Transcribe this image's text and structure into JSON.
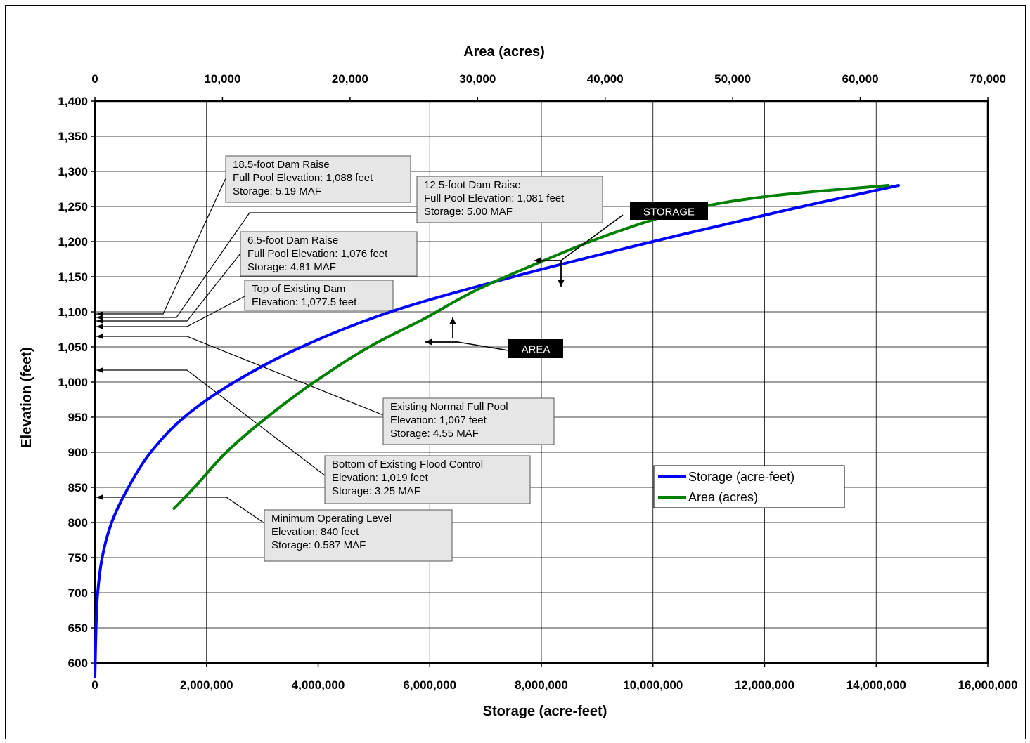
{
  "chart_data": {
    "type": "line",
    "top_axis": {
      "label": "Area (acres)",
      "range": [
        0,
        70000
      ],
      "ticks": [
        "0",
        "10,000",
        "20,000",
        "30,000",
        "40,000",
        "50,000",
        "60,000",
        "70,000"
      ]
    },
    "bottom_axis": {
      "label": "Storage (acre-feet)",
      "range": [
        0,
        16000000
      ],
      "ticks": [
        "0",
        "2,000,000",
        "4,000,000",
        "6,000,000",
        "8,000,000",
        "10,000,000",
        "12,000,000",
        "14,000,000",
        "16,000,000"
      ]
    },
    "y_axis": {
      "label": "Elevation (feet)",
      "range": [
        600,
        1400
      ],
      "ticks": [
        "600",
        "650",
        "700",
        "750",
        "800",
        "850",
        "900",
        "950",
        "1,000",
        "1,050",
        "1,100",
        "1,150",
        "1,200",
        "1,250",
        "1,300",
        "1,350",
        "1,400"
      ]
    },
    "grid": true,
    "legend_position": "right",
    "series": [
      {
        "name": "Storage (acre-feet)",
        "axis": "bottom",
        "color": "#0000ff",
        "points": [
          [
            0,
            580
          ],
          [
            20000,
            650
          ],
          [
            50000,
            700
          ],
          [
            130000,
            750
          ],
          [
            300000,
            800
          ],
          [
            600000,
            850
          ],
          [
            1000000,
            900
          ],
          [
            1600000,
            950
          ],
          [
            2500000,
            1000
          ],
          [
            3700000,
            1050
          ],
          [
            5300000,
            1100
          ],
          [
            7500000,
            1150
          ],
          [
            10000000,
            1200
          ],
          [
            12400000,
            1245
          ],
          [
            14400000,
            1280
          ]
        ]
      },
      {
        "name": "Area (acres)",
        "axis": "top",
        "color": "#008000",
        "points": [
          [
            6200,
            820
          ],
          [
            7800,
            850
          ],
          [
            10300,
            900
          ],
          [
            13500,
            950
          ],
          [
            17200,
            1000
          ],
          [
            21500,
            1050
          ],
          [
            25800,
            1090
          ],
          [
            29800,
            1130
          ],
          [
            34800,
            1170
          ],
          [
            40300,
            1210
          ],
          [
            46500,
            1245
          ],
          [
            53000,
            1265
          ],
          [
            62200,
            1280
          ]
        ]
      }
    ],
    "annotations": [
      {
        "lines": [
          "18.5-foot Dam Raise",
          "Full Pool Elevation: 1,088 feet",
          "Storage:  5.19 MAF"
        ]
      },
      {
        "lines": [
          "12.5-foot Dam Raise",
          "Full Pool Elevation:  1,081 feet",
          "Storage:  5.00 MAF"
        ]
      },
      {
        "lines": [
          "6.5-foot Dam Raise",
          "Full Pool Elevation: 1,076 feet",
          "Storage:  4.81 MAF"
        ]
      },
      {
        "lines": [
          "Top of Existing Dam",
          "Elevation: 1,077.5  feet"
        ]
      },
      {
        "lines": [
          "Existing Normal Full Pool",
          "Elevation: 1,067  feet",
          "Storage: 4.55 MAF"
        ]
      },
      {
        "lines": [
          "Bottom of Existing Flood Control",
          "Elevation:  1,019 feet",
          "Storage:  3.25 MAF"
        ]
      },
      {
        "lines": [
          "Minimum Operating Level",
          "Elevation:  840 feet",
          "Storage:  0.587 MAF"
        ]
      }
    ],
    "curve_labels": [
      "STORAGE",
      "AREA"
    ]
  }
}
